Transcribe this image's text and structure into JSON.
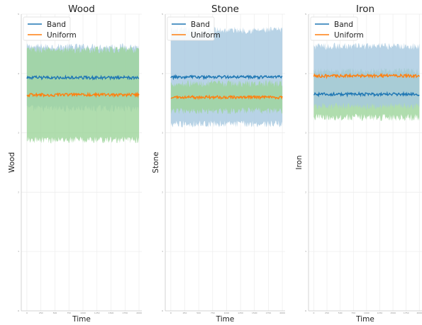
{
  "chart_data": [
    {
      "type": "line",
      "title": "Wood",
      "xlabel": "Time",
      "ylabel": "Wood",
      "xlim": [
        -100,
        2050
      ],
      "ylim": [
        0,
        5
      ],
      "xticks": [
        "0",
        "250",
        "500",
        "750",
        "1000",
        "1250",
        "1500",
        "1750",
        "2000"
      ],
      "yticks": [
        "0",
        "1",
        "2",
        "3",
        "4",
        "5"
      ],
      "grid": true,
      "legend": "top-left",
      "x_range": [
        0,
        2000
      ],
      "series": [
        {
          "name": "Band",
          "color": "#1f77b4",
          "mean": 3.93,
          "band": [
            3.41,
            4.45
          ]
        },
        {
          "name": "Uniform",
          "color": "#ff7f0e",
          "mean": 3.64,
          "band": [
            2.88,
            4.4
          ]
        }
      ],
      "band_colors": [
        "#a6c8e0",
        "#9cd49a"
      ]
    },
    {
      "type": "line",
      "title": "Stone",
      "xlabel": "Time",
      "ylabel": "Stone",
      "xlim": [
        -100,
        2050
      ],
      "ylim": [
        0,
        5
      ],
      "xticks": [
        "0",
        "250",
        "500",
        "750",
        "1000",
        "1250",
        "1500",
        "1750",
        "2000"
      ],
      "yticks": [
        "0",
        "1",
        "2",
        "3",
        "4",
        "5"
      ],
      "grid": true,
      "legend": "top-left",
      "x_range": [
        0,
        2000
      ],
      "series": [
        {
          "name": "Band",
          "color": "#1f77b4",
          "mean": 3.94,
          "band": [
            3.15,
            4.73
          ]
        },
        {
          "name": "Uniform",
          "color": "#ff7f0e",
          "mean": 3.6,
          "band": [
            3.37,
            3.83
          ]
        }
      ],
      "band_colors": [
        "#a6c8e0",
        "#9cd49a"
      ]
    },
    {
      "type": "line",
      "title": "Iron",
      "xlabel": "Time",
      "ylabel": "Iron",
      "xlim": [
        -100,
        2050
      ],
      "ylim": [
        0,
        5
      ],
      "xticks": [
        "0",
        "250",
        "500",
        "750",
        "1000",
        "1250",
        "1500",
        "1750",
        "2000"
      ],
      "yticks": [
        "0",
        "1",
        "2",
        "3",
        "4",
        "5"
      ],
      "grid": true,
      "legend": "top-left",
      "x_range": [
        0,
        2000
      ],
      "series": [
        {
          "name": "Band",
          "color": "#1f77b4",
          "mean": 3.65,
          "band": [
            3.26,
            4.04
          ]
        },
        {
          "name": "Uniform",
          "color": "#ff7f0e",
          "mean": 3.96,
          "band": [
            3.45,
            4.46
          ]
        }
      ],
      "band_colors": [
        "#9cd49a",
        "#a6c8e0"
      ]
    }
  ]
}
